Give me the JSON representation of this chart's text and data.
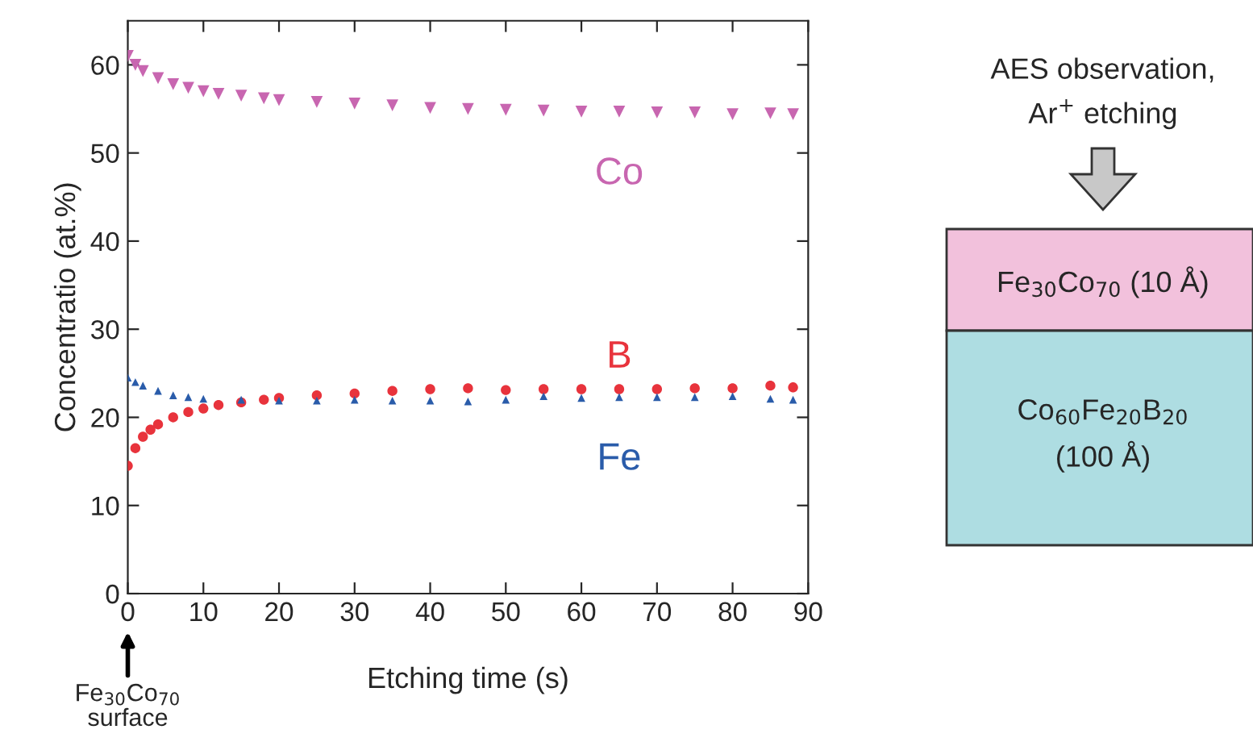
{
  "chart_data": {
    "type": "scatter",
    "xlabel": "Etching time (s)",
    "ylabel": "Concentratio (at.%)",
    "xlim": [
      0,
      90
    ],
    "ylim": [
      0,
      65
    ],
    "xticks": [
      0,
      10,
      20,
      30,
      40,
      50,
      60,
      70,
      80,
      90
    ],
    "yticks": [
      0,
      10,
      20,
      30,
      40,
      50,
      60
    ],
    "grid": false,
    "legend": false,
    "series": [
      {
        "name": "Co",
        "color": "#c866b0",
        "marker": "triangle_down",
        "x": [
          0,
          1,
          2,
          4,
          6,
          8,
          10,
          12,
          15,
          18,
          20,
          25,
          30,
          35,
          40,
          45,
          50,
          55,
          60,
          65,
          70,
          75,
          80,
          85,
          88
        ],
        "values": [
          61,
          60,
          59.3,
          58.5,
          57.8,
          57.4,
          57,
          56.7,
          56.5,
          56.2,
          56.0,
          55.8,
          55.6,
          55.4,
          55.1,
          55.0,
          54.9,
          54.8,
          54.7,
          54.7,
          54.6,
          54.6,
          54.4,
          54.5,
          54.4
        ]
      },
      {
        "name": "B",
        "color": "#e8333c",
        "marker": "circle",
        "x": [
          0,
          1,
          2,
          3,
          4,
          6,
          8,
          10,
          12,
          15,
          18,
          20,
          25,
          30,
          35,
          40,
          45,
          50,
          55,
          60,
          65,
          70,
          75,
          80,
          85,
          88
        ],
        "values": [
          14.5,
          16.5,
          17.8,
          18.6,
          19.2,
          20,
          20.6,
          21.0,
          21.4,
          21.7,
          22.0,
          22.2,
          22.5,
          22.7,
          23.0,
          23.2,
          23.3,
          23.1,
          23.2,
          23.2,
          23.2,
          23.2,
          23.3,
          23.3,
          23.6,
          23.4
        ]
      },
      {
        "name": "Fe",
        "color": "#2a5caa",
        "marker": "triangle",
        "x": [
          0,
          1,
          2,
          4,
          6,
          8,
          10,
          15,
          20,
          25,
          30,
          35,
          40,
          45,
          50,
          55,
          60,
          65,
          70,
          75,
          80,
          85,
          88
        ],
        "values": [
          24.5,
          24,
          23.6,
          23.0,
          22.5,
          22.3,
          22.1,
          22.0,
          21.9,
          21.9,
          22.0,
          21.9,
          21.9,
          21.8,
          22.0,
          22.4,
          22.2,
          22.3,
          22.3,
          22.3,
          22.4,
          22.1,
          22.0
        ]
      }
    ],
    "annotations": [
      "Fe$_{30}$Co$_{70}$\nsurface",
      "AES observation,\nAr$^{+}$ etching",
      "Fe$_{30}$Co$_{70}$ (10 Å)",
      "Co$_{60}$Fe$_{20}$B$_{20}$\n(100 Å)"
    ]
  }
}
